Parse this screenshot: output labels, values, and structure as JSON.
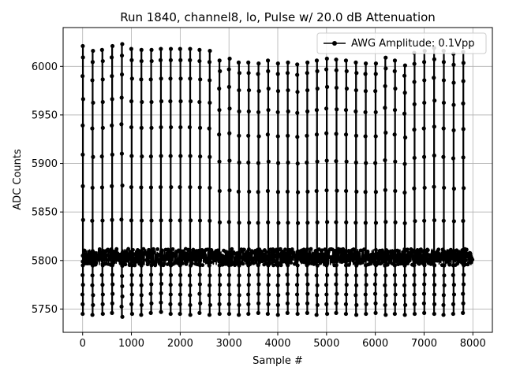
{
  "chart_data": {
    "type": "line",
    "title": "Run 1840, channel8, lo, Pulse w/ 20.0 dB Attenuation",
    "xlabel": "Sample #",
    "ylabel": "ADC Counts",
    "xlim": [
      -400,
      8400
    ],
    "ylim": [
      5726,
      6040
    ],
    "xticks": [
      0,
      1000,
      2000,
      3000,
      4000,
      5000,
      6000,
      7000,
      8000
    ],
    "yticks": [
      5750,
      5800,
      5850,
      5900,
      5950,
      6000
    ],
    "grid": true,
    "legend": {
      "position": "top-right"
    },
    "series": [
      {
        "name": "AWG Amplitude: 0.1Vpp",
        "color": "#000000",
        "marker": "circle",
        "baseline": 5805,
        "noise_range": [
          5795,
          5812
        ],
        "pulse_period": 200,
        "pulse_start": 5,
        "pulse_peaks": [
          6021,
          6016,
          6017,
          6021,
          6023,
          6018,
          6017,
          6017,
          6018,
          6018,
          6018,
          6018,
          6017,
          6016,
          6006,
          6008,
          6004,
          6004,
          6003,
          6006,
          6003,
          6004,
          6002,
          6004,
          6006,
          6008,
          6007,
          6006,
          6004,
          6003,
          6003,
          6009,
          6006,
          6001,
          6014,
          6016,
          6019,
          6016,
          6013,
          6015
        ],
        "pulse_troughs": [
          5745,
          5744,
          5745,
          5746,
          5742,
          5745,
          5744,
          5746,
          5747,
          5745,
          5745,
          5744,
          5746,
          5744,
          5745,
          5745,
          5744,
          5745,
          5746,
          5745,
          5744,
          5746,
          5745,
          5746,
          5744,
          5745,
          5746,
          5745,
          5744,
          5745,
          5746,
          5744,
          5745,
          5744,
          5745,
          5746,
          5745,
          5744,
          5745,
          5746
        ],
        "x_range": [
          0,
          8000
        ]
      }
    ]
  }
}
